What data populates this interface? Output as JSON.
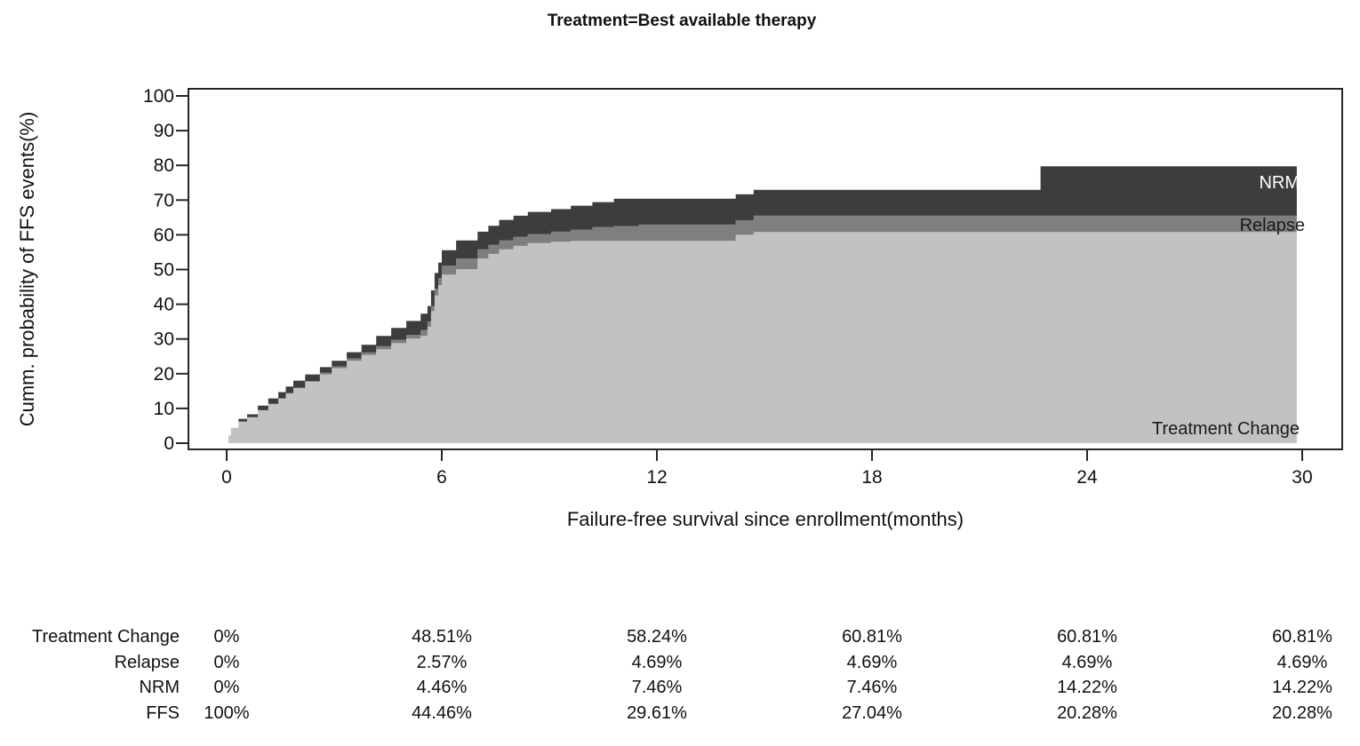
{
  "title": "Treatment=Best available therapy",
  "chart_data": {
    "type": "area",
    "variant": "stacked-step-cumulative-incidence",
    "title": "Treatment=Best available therapy",
    "xlabel": "Failure-free survival since enrollment(months)",
    "ylabel": "Cumm. probability of FFS events(%)",
    "xlim": [
      0,
      30
    ],
    "ylim": [
      0,
      100
    ],
    "x_ticks": [
      0,
      6,
      12,
      18,
      24,
      30
    ],
    "y_ticks": [
      0,
      10,
      20,
      30,
      40,
      50,
      60,
      70,
      80,
      90,
      100
    ],
    "grid": false,
    "legend_position": "labels-inside-right",
    "series_bottom_to_top": [
      {
        "name": "Treatment Change",
        "color": "#c2c2c2",
        "label_color": "#1a1a1a"
      },
      {
        "name": "Relapse",
        "color": "#7f7f7f",
        "label_color": "#1a1a1a"
      },
      {
        "name": "NRM",
        "color": "#3d3d3d",
        "label_color": "#ffffff"
      }
    ],
    "steps": {
      "note": "cumulative percent boundaries of the stacked step areas at each event time",
      "months": [
        0.05,
        0.12,
        0.33,
        0.57,
        0.87,
        1.16,
        1.44,
        1.65,
        1.86,
        2.19,
        2.6,
        2.93,
        3.35,
        3.76,
        4.17,
        4.59,
        5.01,
        5.41,
        5.6,
        5.7,
        5.8,
        5.9,
        6.0,
        6.4,
        7.0,
        7.3,
        7.6,
        8.0,
        8.4,
        9.05,
        9.6,
        10.2,
        10.8,
        11.5,
        14.2,
        14.7,
        22.7
      ],
      "treatment_change": [
        2.2,
        4.4,
        6.2,
        7.5,
        9.5,
        11.3,
        12.9,
        14.4,
        15.9,
        17.7,
        19.8,
        21.6,
        23.7,
        25.4,
        27.0,
        28.8,
        30.1,
        30.9,
        33.5,
        38.0,
        42.5,
        45.5,
        48.51,
        50.1,
        53.2,
        54.5,
        55.8,
        56.8,
        57.6,
        58.0,
        58.24,
        58.24,
        58.24,
        58.24,
        60.0,
        60.81,
        60.81
      ],
      "treatment_change_plus_relapse": [
        2.2,
        4.4,
        6.2,
        7.5,
        9.5,
        11.3,
        12.9,
        14.4,
        15.9,
        17.9,
        20.3,
        22.1,
        24.4,
        26.1,
        27.9,
        29.8,
        31.2,
        32.6,
        35.0,
        39.5,
        44.5,
        47.5,
        51.08,
        53.2,
        55.8,
        57.1,
        58.4,
        59.4,
        60.2,
        60.9,
        61.5,
        62.2,
        62.5,
        62.93,
        64.2,
        65.5,
        65.5
      ],
      "total_ffs_events": [
        2.2,
        4.4,
        7.0,
        8.3,
        10.8,
        12.9,
        14.7,
        16.3,
        18.0,
        19.8,
        21.9,
        23.7,
        26.2,
        28.3,
        30.9,
        33.2,
        35.2,
        37.3,
        39.5,
        44.0,
        49.0,
        52.0,
        55.54,
        58.4,
        60.9,
        62.6,
        64.3,
        65.5,
        66.6,
        67.4,
        68.4,
        69.4,
        70.39,
        70.39,
        71.7,
        72.96,
        79.72
      ],
      "end_month": 29.85
    },
    "values_at_ticks": {
      "months": [
        0,
        6,
        12,
        18,
        24,
        30
      ],
      "Treatment Change": [
        "0%",
        "48.51%",
        "58.24%",
        "60.81%",
        "60.81%",
        "60.81%"
      ],
      "Relapse": [
        "0%",
        "2.57%",
        "4.69%",
        "4.69%",
        "4.69%",
        "4.69%"
      ],
      "NRM": [
        "0%",
        "4.46%",
        "7.46%",
        "7.46%",
        "14.22%",
        "14.22%"
      ],
      "FFS": [
        "100%",
        "44.46%",
        "29.61%",
        "27.04%",
        "20.28%",
        "20.28%"
      ]
    }
  },
  "summary_table": {
    "rows": [
      {
        "label": "Treatment Change",
        "values": [
          "0%",
          "48.51%",
          "58.24%",
          "60.81%",
          "60.81%",
          "60.81%"
        ]
      },
      {
        "label": "Relapse",
        "values": [
          "0%",
          "2.57%",
          "4.69%",
          "4.69%",
          "4.69%",
          "4.69%"
        ]
      },
      {
        "label": "NRM",
        "values": [
          "0%",
          "4.46%",
          "7.46%",
          "7.46%",
          "14.22%",
          "14.22%"
        ]
      },
      {
        "label": "FFS",
        "values": [
          "100%",
          "44.46%",
          "29.61%",
          "27.04%",
          "20.28%",
          "20.28%"
        ]
      }
    ]
  }
}
